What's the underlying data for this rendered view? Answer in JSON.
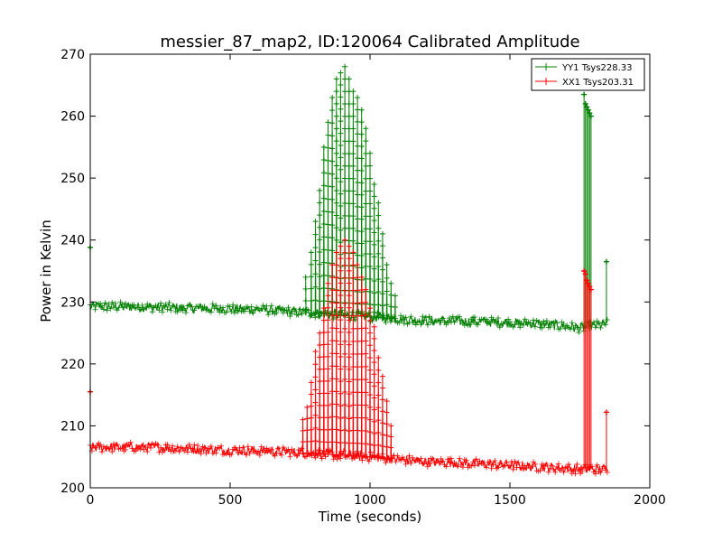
{
  "chart_data": {
    "type": "line",
    "title": "messier_87_map2, ID:120064 Calibrated Amplitude",
    "xlabel": "Time (seconds)",
    "ylabel": "Power in Kelvin",
    "xlim": [
      0,
      2000
    ],
    "ylim": [
      200,
      270
    ],
    "xticks": [
      "0",
      "500",
      "1000",
      "1500",
      "2000"
    ],
    "yticks": [
      "200",
      "210",
      "220",
      "230",
      "240",
      "250",
      "260",
      "270"
    ],
    "grid": false,
    "legend_position": "top-right",
    "marker": "+",
    "series": [
      {
        "name": "YY1 Tsys228.33",
        "color": "#008000",
        "baseline": [
          [
            0,
            229.3
          ],
          [
            200,
            229.2
          ],
          [
            400,
            229.0
          ],
          [
            600,
            228.8
          ],
          [
            700,
            228.5
          ],
          [
            1000,
            227.6
          ],
          [
            1200,
            227.0
          ],
          [
            1400,
            226.8
          ],
          [
            1600,
            226.5
          ],
          [
            1760,
            225.8
          ],
          [
            1850,
            226.5
          ]
        ],
        "spikes": [
          [
            770,
            234
          ],
          [
            790,
            238
          ],
          [
            805,
            243
          ],
          [
            820,
            248
          ],
          [
            835,
            255
          ],
          [
            850,
            259
          ],
          [
            865,
            263
          ],
          [
            880,
            266
          ],
          [
            895,
            267
          ],
          [
            910,
            268
          ],
          [
            925,
            266
          ],
          [
            940,
            264
          ],
          [
            955,
            263
          ],
          [
            970,
            261
          ],
          [
            985,
            258
          ],
          [
            1000,
            254
          ],
          [
            1015,
            249
          ],
          [
            1030,
            246
          ],
          [
            1045,
            241
          ],
          [
            1060,
            236
          ],
          [
            1075,
            233
          ],
          [
            1090,
            231
          ]
        ],
        "edge_points": [
          [
            0,
            238.8
          ],
          [
            1765,
            263.5
          ],
          [
            1770,
            262
          ],
          [
            1775,
            261.5
          ],
          [
            1780,
            261
          ],
          [
            1785,
            260.5
          ],
          [
            1790,
            260
          ],
          [
            1845,
            236.5
          ]
        ]
      },
      {
        "name": "XX1 Tsys203.31",
        "color": "#ff0000",
        "baseline": [
          [
            0,
            206.5
          ],
          [
            200,
            206.6
          ],
          [
            400,
            206.2
          ],
          [
            600,
            206.0
          ],
          [
            700,
            205.8
          ],
          [
            1000,
            205.0
          ],
          [
            1200,
            204.2
          ],
          [
            1400,
            203.9
          ],
          [
            1600,
            203.4
          ],
          [
            1760,
            203.0
          ],
          [
            1850,
            203.0
          ]
        ],
        "spikes": [
          [
            760,
            211
          ],
          [
            775,
            213
          ],
          [
            790,
            217
          ],
          [
            805,
            222
          ],
          [
            820,
            225
          ],
          [
            835,
            229
          ],
          [
            850,
            233
          ],
          [
            865,
            236
          ],
          [
            880,
            238
          ],
          [
            895,
            239
          ],
          [
            910,
            240
          ],
          [
            925,
            239
          ],
          [
            940,
            238
          ],
          [
            955,
            236
          ],
          [
            970,
            234
          ],
          [
            985,
            232
          ],
          [
            1000,
            229
          ],
          [
            1015,
            226
          ],
          [
            1030,
            221
          ],
          [
            1045,
            218
          ],
          [
            1060,
            214
          ],
          [
            1075,
            210
          ]
        ],
        "edge_points": [
          [
            0,
            215.5
          ],
          [
            1765,
            235
          ],
          [
            1770,
            234.5
          ],
          [
            1775,
            233.5
          ],
          [
            1780,
            233
          ],
          [
            1785,
            232.5
          ],
          [
            1790,
            232
          ],
          [
            1845,
            212.2
          ]
        ]
      }
    ]
  }
}
